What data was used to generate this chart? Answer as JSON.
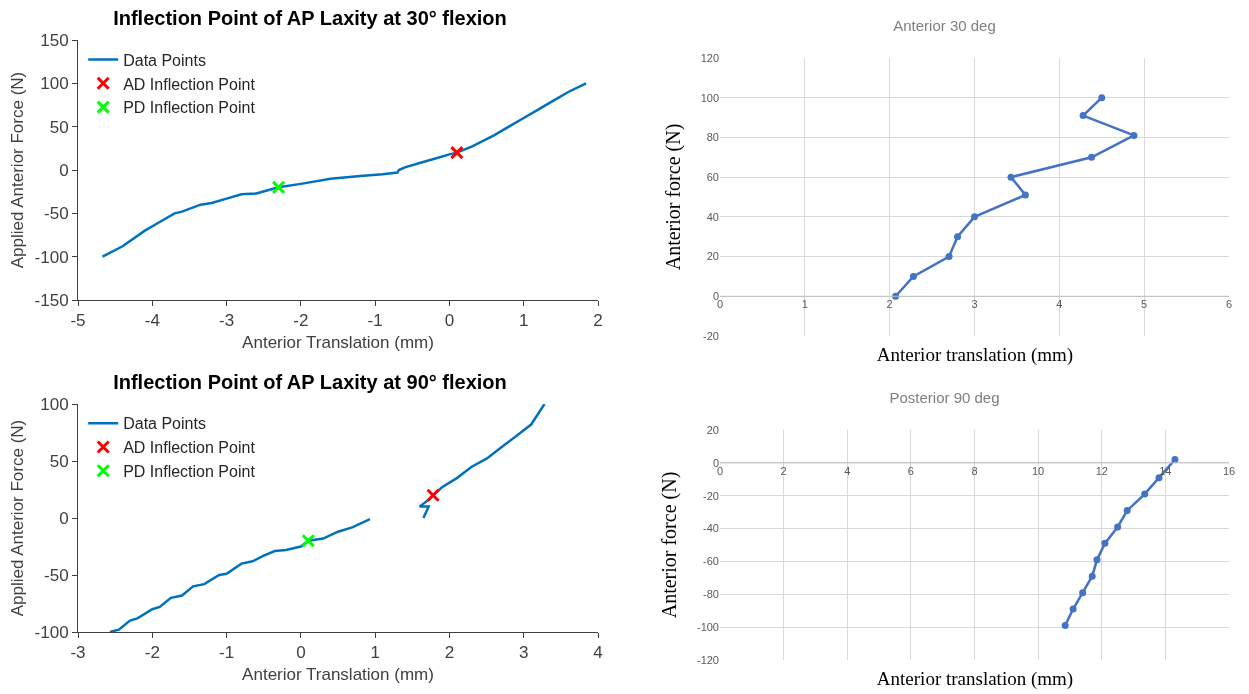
{
  "chart_data": [
    {
      "type": "line",
      "title": "Inflection Point of AP Laxity at 30° flexion",
      "xlabel": "Anterior Translation (mm)",
      "ylabel": "Applied Anterior Force (N)",
      "xlim": [
        -5,
        2
      ],
      "xticks": [
        -5,
        -4,
        -3,
        -2,
        -1,
        0,
        1,
        2
      ],
      "ylim": [
        -150,
        150
      ],
      "yticks": [
        -150,
        -100,
        -50,
        0,
        50,
        100,
        150
      ],
      "grid": false,
      "legend": "top left",
      "series": [
        {
          "name": "Data Points",
          "type": "line",
          "marker": "none",
          "color": "#0072bd",
          "x": [
            -4.67,
            -4.4,
            -4.1,
            -3.9,
            -3.7,
            -3.6,
            -3.35,
            -3.2,
            -3.0,
            -2.8,
            -2.6,
            -2.3,
            -2.0,
            -1.6,
            -1.2,
            -0.9,
            -0.7,
            -0.68,
            -0.6,
            -0.4,
            -0.2,
            0,
            0.1,
            0.3,
            0.6,
            0.8,
            1.0,
            1.2,
            1.4,
            1.6,
            1.84
          ],
          "values": [
            -100,
            -88,
            -70,
            -60,
            -50,
            -48,
            -40,
            -38,
            -33,
            -28,
            -27,
            -20,
            -16,
            -10,
            -7,
            -5,
            -3,
            0,
            3,
            8,
            13,
            18,
            20,
            27,
            40,
            50,
            60,
            70,
            80,
            90,
            100
          ]
        },
        {
          "name": "AD Inflection Point",
          "type": "scatter",
          "marker": "cross",
          "color": "#ff0000",
          "x": [
            0.1
          ],
          "values": [
            20
          ]
        },
        {
          "name": "PD Inflection Point",
          "type": "scatter",
          "marker": "cross",
          "color": "#00ff00",
          "x": [
            -2.3
          ],
          "values": [
            -20
          ]
        }
      ]
    },
    {
      "type": "line",
      "title": "Inflection Point of AP Laxity at 90° flexion",
      "xlabel": "Anterior Translation (mm)",
      "ylabel": "Applied Anterior Force (N)",
      "xlim": [
        -3,
        4
      ],
      "xticks": [
        -3,
        -2,
        -1,
        0,
        1,
        2,
        3,
        4
      ],
      "ylim": [
        -100,
        100
      ],
      "yticks": [
        -100,
        -50,
        0,
        50,
        100
      ],
      "grid": false,
      "legend": "top left",
      "series": [
        {
          "name": "Data Points",
          "type": "line",
          "marker": "none",
          "color": "#0072bd",
          "x": [
            -2.57,
            -2.45,
            -2.3,
            -2.2,
            -2.0,
            -1.9,
            -1.75,
            -1.6,
            -1.45,
            -1.3,
            -1.1,
            -1.0,
            -0.8,
            -0.65,
            -0.5,
            -0.35,
            -0.2,
            0,
            0.1,
            0.3,
            0.5,
            0.7,
            0.93,
            null,
            1.65,
            1.72,
            1.6,
            1.7,
            1.9,
            2.1,
            2.3,
            2.5,
            2.7,
            2.9,
            3.1,
            3.28
          ],
          "values": [
            -100,
            -98,
            -90,
            -88,
            -80,
            -78,
            -70,
            -68,
            -60,
            -58,
            -50,
            -49,
            -40,
            -38,
            -33,
            -29,
            -28,
            -25,
            -20,
            -18,
            -12,
            -8,
            -1,
            null,
            0,
            10,
            10,
            15,
            27,
            35,
            45,
            52,
            62,
            72,
            82,
            100
          ]
        },
        {
          "name": "AD Inflection Point",
          "type": "scatter",
          "marker": "cross",
          "color": "#ff0000",
          "x": [
            1.78
          ],
          "values": [
            20
          ]
        },
        {
          "name": "PD Inflection Point",
          "type": "scatter",
          "marker": "cross",
          "color": "#00ff00",
          "x": [
            0.1
          ],
          "values": [
            -20
          ]
        }
      ]
    },
    {
      "type": "line",
      "title": "Anterior 30 deg",
      "xlabel": "Anterior translation (mm)",
      "ylabel": "Anterior force (N)",
      "xlim": [
        0,
        6
      ],
      "xticks": [
        0,
        1,
        2,
        3,
        4,
        5,
        6
      ],
      "ylim": [
        -20,
        120
      ],
      "yticks": [
        -20,
        0,
        20,
        40,
        60,
        80,
        100,
        120
      ],
      "grid": true,
      "legend": false,
      "series": [
        {
          "type": "line",
          "marker": "circle",
          "color": "#4472c4",
          "x": [
            2.07,
            2.28,
            2.7,
            2.8,
            3.0,
            3.6,
            3.43,
            4.38,
            4.88,
            4.28,
            4.5
          ],
          "values": [
            0,
            10,
            20,
            30,
            40,
            51,
            60,
            70,
            81,
            91,
            100
          ]
        }
      ]
    },
    {
      "type": "line",
      "title": "Posterior 90 deg",
      "xlabel": "Anterior translation (mm)",
      "ylabel": "Anterior force (N)",
      "xlim": [
        0,
        16
      ],
      "xticks": [
        0,
        2,
        4,
        6,
        8,
        10,
        12,
        14,
        16
      ],
      "ylim": [
        -120,
        20
      ],
      "yticks": [
        -120,
        -100,
        -80,
        -60,
        -40,
        -20,
        0,
        20
      ],
      "grid": true,
      "legend": false,
      "series": [
        {
          "type": "line",
          "marker": "circle",
          "color": "#4472c4",
          "x": [
            10.85,
            11.1,
            11.4,
            11.7,
            11.85,
            12.1,
            12.5,
            12.8,
            13.35,
            13.8,
            14.3
          ],
          "values": [
            -99,
            -89,
            -79,
            -69,
            -59,
            -49,
            -39,
            -29,
            -19,
            -9,
            2
          ]
        }
      ]
    }
  ]
}
